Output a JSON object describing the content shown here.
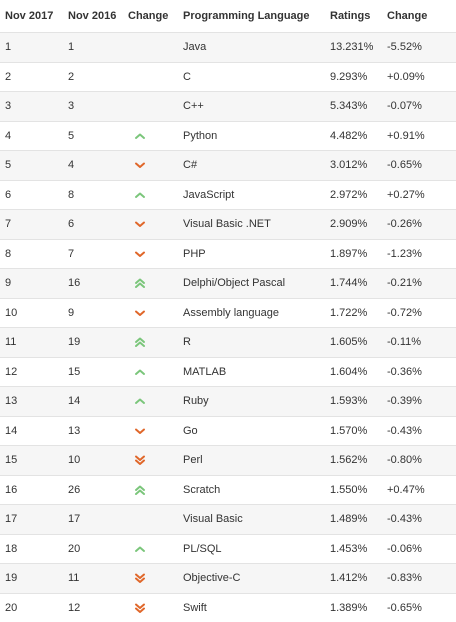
{
  "headers": [
    "Nov 2017",
    "Nov 2016",
    "Change",
    "Programming Language",
    "Ratings",
    "Change"
  ],
  "colors": {
    "up": "#7bc67b",
    "down": "#e0672a"
  },
  "rows": [
    {
      "rank2017": "1",
      "rank2016": "1",
      "trend": "none",
      "language": "Java",
      "rating": "13.231%",
      "change": "-5.52%"
    },
    {
      "rank2017": "2",
      "rank2016": "2",
      "trend": "none",
      "language": "C",
      "rating": "9.293%",
      "change": "+0.09%"
    },
    {
      "rank2017": "3",
      "rank2016": "3",
      "trend": "none",
      "language": "C++",
      "rating": "5.343%",
      "change": "-0.07%"
    },
    {
      "rank2017": "4",
      "rank2016": "5",
      "trend": "up",
      "language": "Python",
      "rating": "4.482%",
      "change": "+0.91%"
    },
    {
      "rank2017": "5",
      "rank2016": "4",
      "trend": "down",
      "language": "C#",
      "rating": "3.012%",
      "change": "-0.65%"
    },
    {
      "rank2017": "6",
      "rank2016": "8",
      "trend": "up",
      "language": "JavaScript",
      "rating": "2.972%",
      "change": "+0.27%"
    },
    {
      "rank2017": "7",
      "rank2016": "6",
      "trend": "down",
      "language": "Visual Basic .NET",
      "rating": "2.909%",
      "change": "-0.26%"
    },
    {
      "rank2017": "8",
      "rank2016": "7",
      "trend": "down",
      "language": "PHP",
      "rating": "1.897%",
      "change": "-1.23%"
    },
    {
      "rank2017": "9",
      "rank2016": "16",
      "trend": "double-up",
      "language": "Delphi/Object Pascal",
      "rating": "1.744%",
      "change": "-0.21%"
    },
    {
      "rank2017": "10",
      "rank2016": "9",
      "trend": "down",
      "language": "Assembly language",
      "rating": "1.722%",
      "change": "-0.72%"
    },
    {
      "rank2017": "11",
      "rank2016": "19",
      "trend": "double-up",
      "language": "R",
      "rating": "1.605%",
      "change": "-0.11%"
    },
    {
      "rank2017": "12",
      "rank2016": "15",
      "trend": "up",
      "language": "MATLAB",
      "rating": "1.604%",
      "change": "-0.36%"
    },
    {
      "rank2017": "13",
      "rank2016": "14",
      "trend": "up",
      "language": "Ruby",
      "rating": "1.593%",
      "change": "-0.39%"
    },
    {
      "rank2017": "14",
      "rank2016": "13",
      "trend": "down",
      "language": "Go",
      "rating": "1.570%",
      "change": "-0.43%"
    },
    {
      "rank2017": "15",
      "rank2016": "10",
      "trend": "double-down",
      "language": "Perl",
      "rating": "1.562%",
      "change": "-0.80%"
    },
    {
      "rank2017": "16",
      "rank2016": "26",
      "trend": "double-up",
      "language": "Scratch",
      "rating": "1.550%",
      "change": "+0.47%"
    },
    {
      "rank2017": "17",
      "rank2016": "17",
      "trend": "none",
      "language": "Visual Basic",
      "rating": "1.489%",
      "change": "-0.43%"
    },
    {
      "rank2017": "18",
      "rank2016": "20",
      "trend": "up",
      "language": "PL/SQL",
      "rating": "1.453%",
      "change": "-0.06%"
    },
    {
      "rank2017": "19",
      "rank2016": "11",
      "trend": "double-down",
      "language": "Objective-C",
      "rating": "1.412%",
      "change": "-0.83%"
    },
    {
      "rank2017": "20",
      "rank2016": "12",
      "trend": "double-down",
      "language": "Swift",
      "rating": "1.389%",
      "change": "-0.65%"
    }
  ]
}
